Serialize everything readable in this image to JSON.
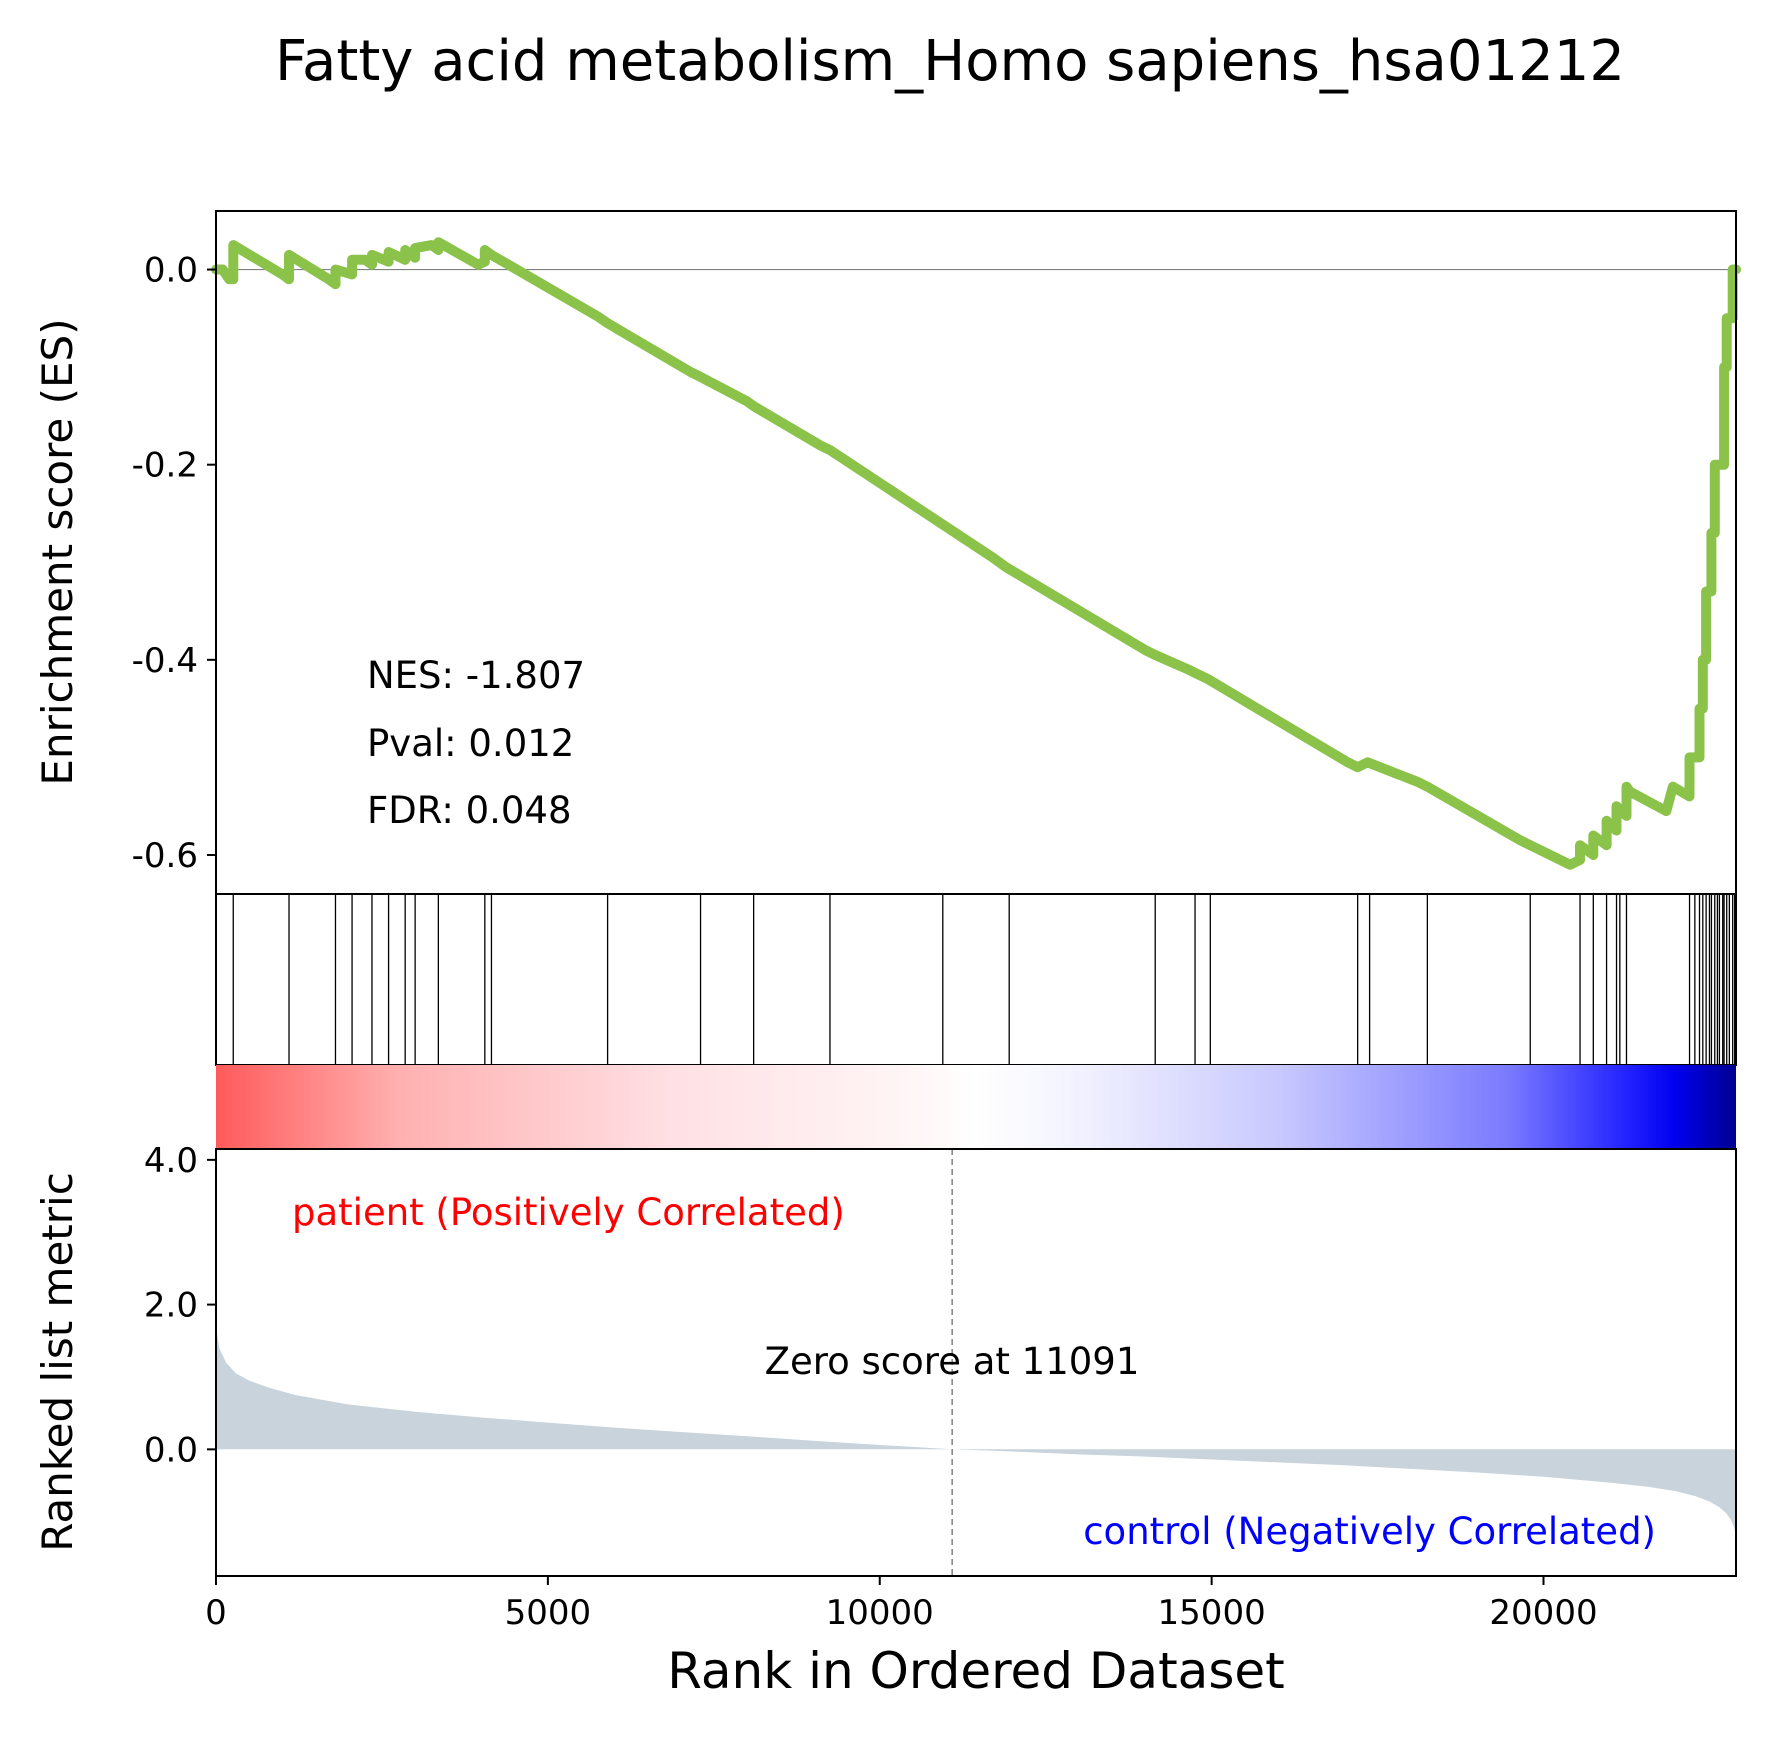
{
  "chart_data": {
    "type": "line",
    "title": "Fatty acid metabolism_Homo sapiens_hsa01212",
    "xlabel": "Rank in Ordered Dataset",
    "xlim": [
      0,
      22900
    ],
    "x_ticks": [
      0,
      5000,
      10000,
      15000,
      20000
    ],
    "x_tick_labels": [
      "0",
      "5000",
      "10000",
      "15000",
      "20000"
    ],
    "es_panel": {
      "ylabel": "Enrichment score (ES)",
      "ylim": [
        -0.64,
        0.06
      ],
      "y_ticks": [
        0.0,
        -0.2,
        -0.4,
        -0.6
      ],
      "y_tick_labels": [
        "0.0",
        "-0.2",
        "-0.4",
        "-0.6"
      ],
      "line_color": "#8bc34a",
      "stats": [
        "NES: -1.807",
        "Pval: 0.012",
        "FDR: 0.048"
      ],
      "series": [
        {
          "x": [
            0,
            100,
            200,
            260,
            260,
            1000,
            1100,
            1100,
            1700,
            1800,
            1800,
            2050,
            2050,
            2250,
            2350,
            2350,
            2600,
            2600,
            2850,
            2850,
            3000,
            3000,
            3250,
            3350,
            3350,
            3950,
            4050,
            4050,
            4150,
            5750,
            5900,
            7150,
            7300,
            8000,
            8100,
            9100,
            9250,
            11700,
            11900,
            14000,
            14150,
            14650,
            14800,
            14950,
            17050,
            17200,
            17350,
            18100,
            18250,
            19650,
            19800,
            20400,
            20550,
            20550,
            20750,
            20750,
            20950,
            20950,
            21100,
            21100,
            21250,
            21250,
            21300,
            21850,
            21950,
            21950,
            22200,
            22200,
            22350,
            22350,
            22400,
            22400,
            22450,
            22450,
            22530,
            22530,
            22580,
            22580,
            22650,
            22650,
            22720,
            22720,
            22760,
            22760,
            22800,
            22800,
            22850,
            22850,
            22900
          ],
          "y": [
            0.0,
            0.0,
            -0.01,
            -0.01,
            0.025,
            -0.005,
            -0.01,
            0.015,
            -0.01,
            -0.015,
            0.0,
            -0.005,
            0.01,
            0.01,
            0.005,
            0.015,
            0.008,
            0.018,
            0.01,
            0.02,
            0.012,
            0.022,
            0.025,
            0.02,
            0.028,
            0.005,
            0.008,
            0.02,
            0.015,
            -0.048,
            -0.055,
            -0.105,
            -0.11,
            -0.135,
            -0.14,
            -0.18,
            -0.185,
            -0.295,
            -0.305,
            -0.39,
            -0.395,
            -0.41,
            -0.415,
            -0.42,
            -0.505,
            -0.51,
            -0.505,
            -0.525,
            -0.53,
            -0.585,
            -0.59,
            -0.61,
            -0.605,
            -0.59,
            -0.6,
            -0.58,
            -0.59,
            -0.565,
            -0.575,
            -0.55,
            -0.56,
            -0.53,
            -0.535,
            -0.555,
            -0.53,
            -0.53,
            -0.54,
            -0.5,
            -0.5,
            -0.45,
            -0.45,
            -0.4,
            -0.4,
            -0.33,
            -0.33,
            -0.27,
            -0.27,
            -0.2,
            -0.2,
            -0.2,
            -0.2,
            -0.1,
            -0.1,
            -0.05,
            -0.05,
            -0.05,
            -0.05,
            0.0,
            0.0
          ]
        }
      ]
    },
    "hits_panel": {
      "hit_positions": [
        260,
        1100,
        1800,
        2050,
        2350,
        2600,
        2850,
        3000,
        3350,
        4050,
        4150,
        5900,
        7300,
        8100,
        9250,
        10950,
        11950,
        14150,
        14750,
        14980,
        17200,
        17380,
        18250,
        19800,
        20550,
        20750,
        20950,
        21100,
        21150,
        21250,
        22200,
        22280,
        22350,
        22400,
        22450,
        22500,
        22530,
        22580,
        22620,
        22650,
        22700,
        22720,
        22760,
        22800,
        22850,
        22880
      ]
    },
    "ranked_panel": {
      "ylabel": "Ranked list metric",
      "ylim": [
        -1.75,
        4.15
      ],
      "y_ticks": [
        4.0,
        2.0,
        0.0
      ],
      "y_tick_labels": [
        "4.0",
        "2.0",
        "0.0"
      ],
      "fill_color": "#c8d3dc",
      "curve": {
        "x": [
          0,
          50,
          150,
          300,
          500,
          800,
          1200,
          2000,
          3000,
          4000,
          5000,
          6000,
          7000,
          8000,
          9000,
          10000,
          11091,
          12000,
          13000,
          14000,
          15000,
          16000,
          17000,
          18000,
          19000,
          20000,
          21000,
          21600,
          22000,
          22300,
          22500,
          22650,
          22750,
          22820,
          22870,
          22900
        ],
        "y": [
          1.7,
          1.4,
          1.2,
          1.05,
          0.95,
          0.85,
          0.75,
          0.62,
          0.52,
          0.44,
          0.37,
          0.3,
          0.24,
          0.18,
          0.12,
          0.06,
          0.0,
          -0.03,
          -0.07,
          -0.1,
          -0.14,
          -0.18,
          -0.22,
          -0.27,
          -0.32,
          -0.38,
          -0.46,
          -0.52,
          -0.58,
          -0.65,
          -0.72,
          -0.8,
          -0.88,
          -0.97,
          -1.07,
          -1.2
        ]
      },
      "zero_cross": 11091,
      "zero_label": "Zero score at 11091",
      "pos_label": "patient (Positively Correlated)",
      "pos_color": "#ff0000",
      "neg_label": "control (Negatively Correlated)",
      "neg_color": "#0000ff"
    }
  }
}
